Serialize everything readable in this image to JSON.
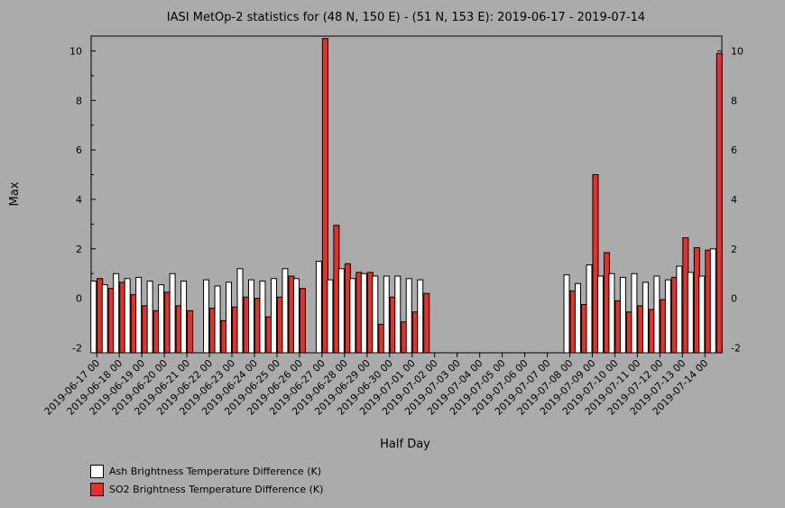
{
  "chart_data": {
    "type": "bar",
    "title": "IASI MetOp-2 statistics for (48 N, 150 E) - (51 N, 153 E): 2019-06-17 - 2019-07-14",
    "xlabel": "Half Day",
    "ylabel": "Max",
    "ylim": [
      -2.2,
      10.6
    ],
    "yticks": [
      -2,
      0,
      2,
      4,
      6,
      8,
      10
    ],
    "categories": [
      "2019-06-17 00",
      "2019-06-17 12",
      "2019-06-18 00",
      "2019-06-18 12",
      "2019-06-19 00",
      "2019-06-19 12",
      "2019-06-20 00",
      "2019-06-20 12",
      "2019-06-21 00",
      "2019-06-21 12",
      "2019-06-22 00",
      "2019-06-22 12",
      "2019-06-23 00",
      "2019-06-23 12",
      "2019-06-24 00",
      "2019-06-24 12",
      "2019-06-25 00",
      "2019-06-25 12",
      "2019-06-26 00",
      "2019-06-26 12",
      "2019-06-27 00",
      "2019-06-27 12",
      "2019-06-28 00",
      "2019-06-28 12",
      "2019-06-29 00",
      "2019-06-29 12",
      "2019-06-30 00",
      "2019-06-30 12",
      "2019-07-01 00",
      "2019-07-01 12",
      "2019-07-02 00",
      "2019-07-02 12",
      "2019-07-03 00",
      "2019-07-03 12",
      "2019-07-04 00",
      "2019-07-04 12",
      "2019-07-05 00",
      "2019-07-05 12",
      "2019-07-06 00",
      "2019-07-06 12",
      "2019-07-07 00",
      "2019-07-07 12",
      "2019-07-08 00",
      "2019-07-08 12",
      "2019-07-09 00",
      "2019-07-09 12",
      "2019-07-10 00",
      "2019-07-10 12",
      "2019-07-11 00",
      "2019-07-11 12",
      "2019-07-12 00",
      "2019-07-12 12",
      "2019-07-13 00",
      "2019-07-13 12",
      "2019-07-14 00",
      "2019-07-14 12"
    ],
    "tick_labels": [
      "2019-06-17 00",
      "2019-06-18 00",
      "2019-06-19 00",
      "2019-06-20 00",
      "2019-06-21 00",
      "2019-06-22 00",
      "2019-06-23 00",
      "2019-06-24 00",
      "2019-06-25 00",
      "2019-06-26 00",
      "2019-06-27 00",
      "2019-06-28 00",
      "2019-06-29 00",
      "2019-06-30 00",
      "2019-07-01 00",
      "2019-07-02 00",
      "2019-07-03 00",
      "2019-07-04 00",
      "2019-07-05 00",
      "2019-07-06 00",
      "2019-07-07 00",
      "2019-07-08 00",
      "2019-07-09 00",
      "2019-07-10 00",
      "2019-07-11 00",
      "2019-07-12 00",
      "2019-07-13 00",
      "2019-07-14 00"
    ],
    "series": [
      {
        "name": "Ash Brightness Temperature Difference (K)",
        "color": "#ffffff",
        "values": [
          0.7,
          0.55,
          1.0,
          0.8,
          0.85,
          0.7,
          0.55,
          1.0,
          0.7,
          null,
          0.75,
          0.5,
          0.65,
          1.2,
          0.75,
          0.7,
          0.8,
          1.2,
          0.8,
          null,
          1.5,
          0.75,
          1.2,
          0.8,
          1.0,
          0.9,
          0.9,
          0.9,
          0.8,
          0.75,
          null,
          null,
          null,
          null,
          null,
          null,
          null,
          null,
          null,
          null,
          null,
          null,
          0.95,
          0.6,
          1.35,
          0.9,
          1.0,
          0.85,
          1.0,
          0.65,
          0.9,
          0.75,
          1.3,
          1.05,
          0.9,
          2.0
        ]
      },
      {
        "name": "SO2 Brightness Temperature Difference (K)",
        "color": "#e8302a",
        "values": [
          0.8,
          0.4,
          0.65,
          0.15,
          -0.3,
          -0.5,
          0.25,
          -0.3,
          -0.5,
          null,
          -0.4,
          -0.9,
          -0.35,
          0.05,
          0.0,
          -0.75,
          0.05,
          0.9,
          0.4,
          null,
          10.5,
          2.95,
          1.4,
          1.05,
          1.05,
          -1.05,
          0.05,
          -0.95,
          -0.55,
          0.2,
          null,
          null,
          null,
          null,
          null,
          null,
          null,
          null,
          null,
          null,
          null,
          null,
          0.3,
          -0.25,
          5.0,
          1.85,
          -0.1,
          -0.55,
          -0.3,
          -0.45,
          -0.05,
          0.85,
          2.45,
          2.05,
          1.95,
          9.9
        ]
      }
    ],
    "grid": false,
    "legend_position": "bottom-left"
  }
}
